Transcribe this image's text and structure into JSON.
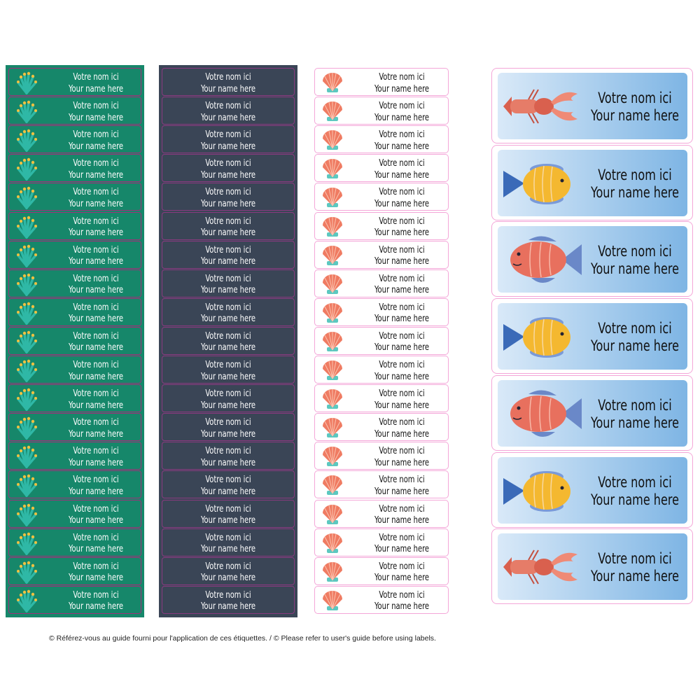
{
  "sheets": {
    "green": {
      "background": "#16876a",
      "icon": "seaweed-icon",
      "labels": [
        {
          "line1": "Votre nom ici",
          "line2": "Your name here"
        },
        {
          "line1": "Votre nom ici",
          "line2": "Your name here"
        },
        {
          "line1": "Votre nom ici",
          "line2": "Your name here"
        },
        {
          "line1": "Votre nom ici",
          "line2": "Your name here"
        },
        {
          "line1": "Votre nom ici",
          "line2": "Your name here"
        },
        {
          "line1": "Votre nom ici",
          "line2": "Your name here"
        },
        {
          "line1": "Votre nom ici",
          "line2": "Your name here"
        },
        {
          "line1": "Votre nom ici",
          "line2": "Your name here"
        },
        {
          "line1": "Votre nom ici",
          "line2": "Your name here"
        },
        {
          "line1": "Votre nom ici",
          "line2": "Your name here"
        },
        {
          "line1": "Votre nom ici",
          "line2": "Your name here"
        },
        {
          "line1": "Votre nom ici",
          "line2": "Your name here"
        },
        {
          "line1": "Votre nom ici",
          "line2": "Your name here"
        },
        {
          "line1": "Votre nom ici",
          "line2": "Your name here"
        },
        {
          "line1": "Votre nom ici",
          "line2": "Your name here"
        },
        {
          "line1": "Votre nom ici",
          "line2": "Your name here"
        },
        {
          "line1": "Votre nom ici",
          "line2": "Your name here"
        },
        {
          "line1": "Votre nom ici",
          "line2": "Your name here"
        },
        {
          "line1": "Votre nom ici",
          "line2": "Your name here"
        }
      ]
    },
    "dark": {
      "background": "#3a4556",
      "labels": [
        {
          "line1": "Votre nom ici",
          "line2": "Your name here"
        },
        {
          "line1": "Votre nom ici",
          "line2": "Your name here"
        },
        {
          "line1": "Votre nom ici",
          "line2": "Your name here"
        },
        {
          "line1": "Votre nom ici",
          "line2": "Your name here"
        },
        {
          "line1": "Votre nom ici",
          "line2": "Your name here"
        },
        {
          "line1": "Votre nom ici",
          "line2": "Your name here"
        },
        {
          "line1": "Votre nom ici",
          "line2": "Your name here"
        },
        {
          "line1": "Votre nom ici",
          "line2": "Your name here"
        },
        {
          "line1": "Votre nom ici",
          "line2": "Your name here"
        },
        {
          "line1": "Votre nom ici",
          "line2": "Your name here"
        },
        {
          "line1": "Votre nom ici",
          "line2": "Your name here"
        },
        {
          "line1": "Votre nom ici",
          "line2": "Your name here"
        },
        {
          "line1": "Votre nom ici",
          "line2": "Your name here"
        },
        {
          "line1": "Votre nom ici",
          "line2": "Your name here"
        },
        {
          "line1": "Votre nom ici",
          "line2": "Your name here"
        },
        {
          "line1": "Votre nom ici",
          "line2": "Your name here"
        },
        {
          "line1": "Votre nom ici",
          "line2": "Your name here"
        },
        {
          "line1": "Votre nom ici",
          "line2": "Your name here"
        },
        {
          "line1": "Votre nom ici",
          "line2": "Your name here"
        }
      ]
    },
    "white": {
      "icon": "seashell-icon",
      "labels": [
        {
          "line1": "Votre nom ici",
          "line2": "Your name here"
        },
        {
          "line1": "Votre nom ici",
          "line2": "Your name here"
        },
        {
          "line1": "Votre nom ici",
          "line2": "Your name here"
        },
        {
          "line1": "Votre nom ici",
          "line2": "Your name here"
        },
        {
          "line1": "Votre nom ici",
          "line2": "Your name here"
        },
        {
          "line1": "Votre nom ici",
          "line2": "Your name here"
        },
        {
          "line1": "Votre nom ici",
          "line2": "Your name here"
        },
        {
          "line1": "Votre nom ici",
          "line2": "Your name here"
        },
        {
          "line1": "Votre nom ici",
          "line2": "Your name here"
        },
        {
          "line1": "Votre nom ici",
          "line2": "Your name here"
        },
        {
          "line1": "Votre nom ici",
          "line2": "Your name here"
        },
        {
          "line1": "Votre nom ici",
          "line2": "Your name here"
        },
        {
          "line1": "Votre nom ici",
          "line2": "Your name here"
        },
        {
          "line1": "Votre nom ici",
          "line2": "Your name here"
        },
        {
          "line1": "Votre nom ici",
          "line2": "Your name here"
        },
        {
          "line1": "Votre nom ici",
          "line2": "Your name here"
        },
        {
          "line1": "Votre nom ici",
          "line2": "Your name here"
        },
        {
          "line1": "Votre nom ici",
          "line2": "Your name here"
        },
        {
          "line1": "Votre nom ici",
          "line2": "Your name here"
        }
      ]
    },
    "sea": {
      "labels": [
        {
          "icon": "lobster-icon",
          "line1": "Votre nom ici",
          "line2": "Your name here"
        },
        {
          "icon": "yellow-fish-icon",
          "line1": "Votre nom ici",
          "line2": "Your name here"
        },
        {
          "icon": "red-fish-icon",
          "line1": "Votre nom ici",
          "line2": "Your name here"
        },
        {
          "icon": "yellow-fish-icon",
          "line1": "Votre nom ici",
          "line2": "Your name here"
        },
        {
          "icon": "red-fish-icon",
          "line1": "Votre nom ici",
          "line2": "Your name here"
        },
        {
          "icon": "yellow-fish-icon",
          "line1": "Votre nom ici",
          "line2": "Your name here"
        },
        {
          "icon": "lobster-icon",
          "line1": "Votre nom ici",
          "line2": "Your name here"
        }
      ]
    }
  },
  "footer": "© Référez-vous au guide fourni pour l'application de ces étiquettes. / © Please refer to user's guide before using labels."
}
